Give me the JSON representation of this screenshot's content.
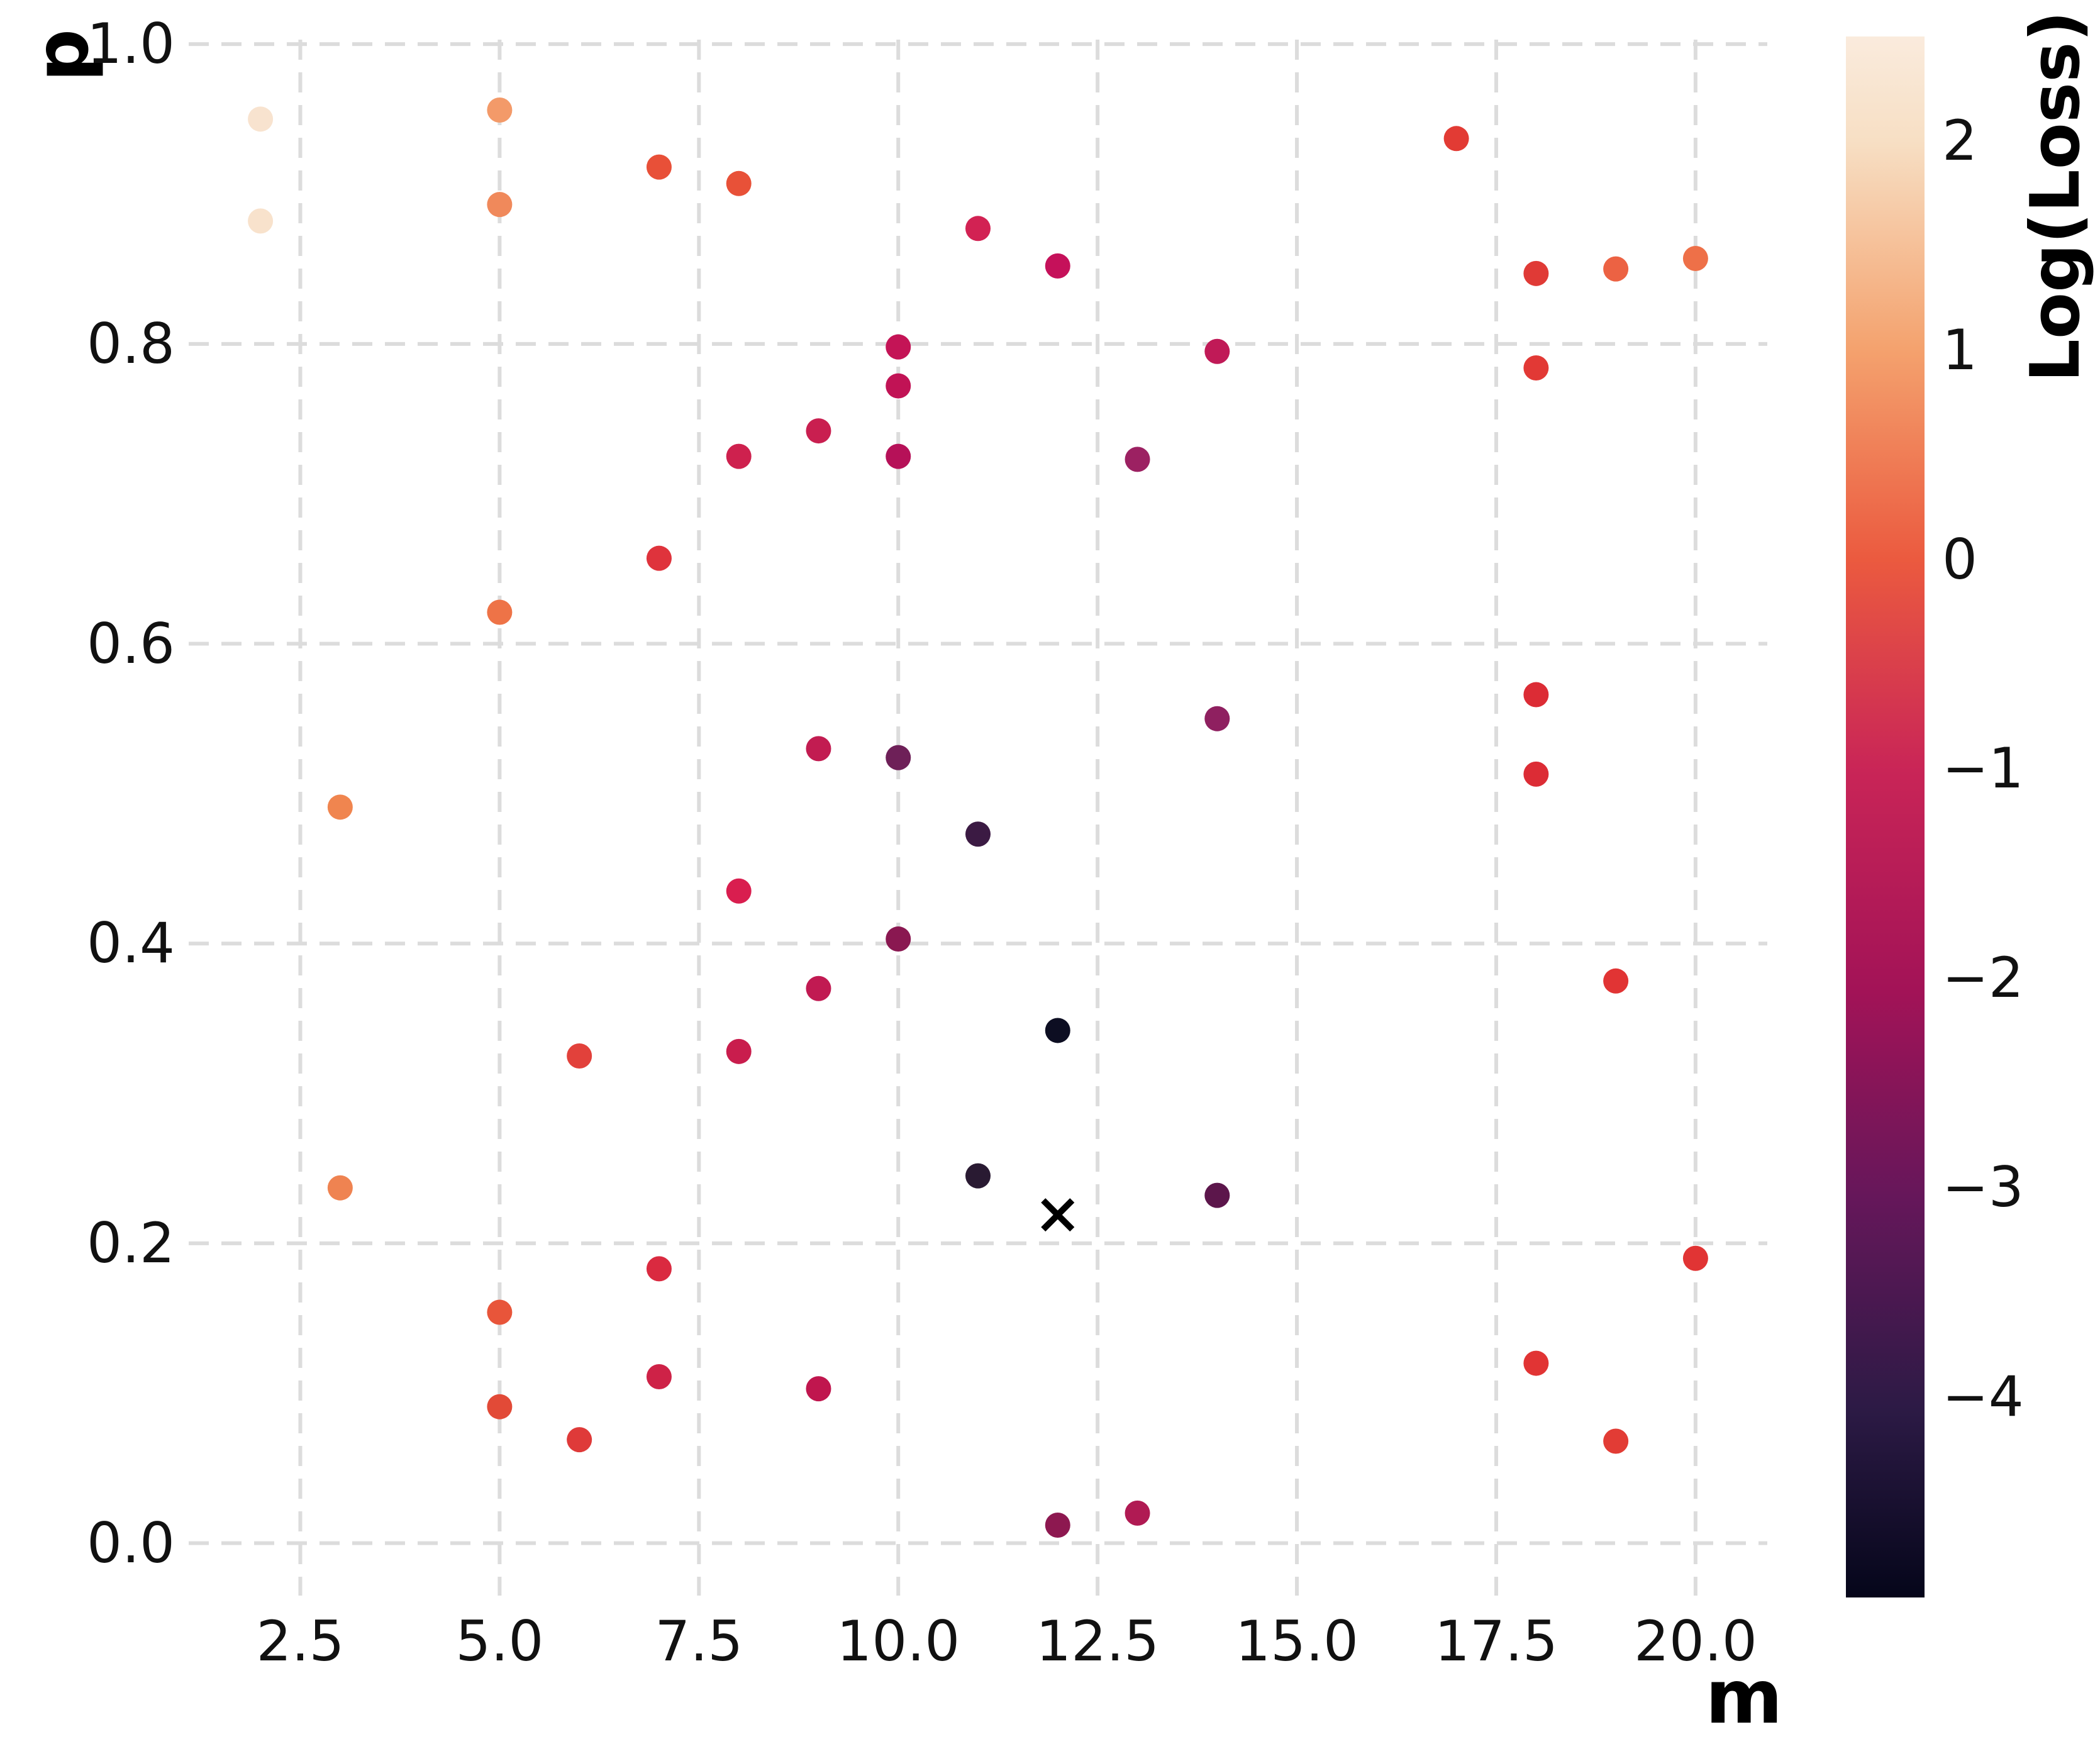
{
  "chart_data": {
    "type": "scatter",
    "title": "",
    "xlabel": "m",
    "ylabel": "p",
    "xlim": [
      1.1,
      20.9
    ],
    "ylim": [
      -0.035,
      1.003
    ],
    "grid": "dashed",
    "grid_color": "#DCDCDC",
    "background_color": "#FFFFFF",
    "marker_radius_px": 20,
    "x_ticks": [
      {
        "v": 2.5,
        "label": "2.5"
      },
      {
        "v": 5.0,
        "label": "5.0"
      },
      {
        "v": 7.5,
        "label": "7.5"
      },
      {
        "v": 10.0,
        "label": "10.0"
      },
      {
        "v": 12.5,
        "label": "12.5"
      },
      {
        "v": 15.0,
        "label": "15.0"
      },
      {
        "v": 17.5,
        "label": "17.5"
      },
      {
        "v": 20.0,
        "label": "20.0"
      }
    ],
    "y_ticks": [
      {
        "v": 0.0,
        "label": "0.0"
      },
      {
        "v": 0.2,
        "label": "0.2"
      },
      {
        "v": 0.4,
        "label": "0.4"
      },
      {
        "v": 0.6,
        "label": "0.6"
      },
      {
        "v": 0.8,
        "label": "0.8"
      },
      {
        "v": 1.0,
        "label": "1.0"
      }
    ],
    "colorbar": {
      "label": "Log(Loss)",
      "vmax": 2.5,
      "vmin": -4.96,
      "ticks": [
        {
          "v": 2,
          "label": "2"
        },
        {
          "v": 1,
          "label": "1"
        },
        {
          "v": 0,
          "label": "0"
        },
        {
          "v": -1,
          "label": "−1"
        },
        {
          "v": -2,
          "label": "−2"
        },
        {
          "v": -3,
          "label": "−3"
        },
        {
          "v": -4,
          "label": "−4"
        }
      ],
      "gradient_stops": [
        {
          "pos": 0.0,
          "color": "#FAEBDD"
        },
        {
          "pos": 0.067,
          "color": "#F7DFC4"
        },
        {
          "pos": 0.2,
          "color": "#F4A26E"
        },
        {
          "pos": 0.335,
          "color": "#EB5A3F"
        },
        {
          "pos": 0.47,
          "color": "#C92557"
        },
        {
          "pos": 0.61,
          "color": "#A31357"
        },
        {
          "pos": 0.745,
          "color": "#65175A"
        },
        {
          "pos": 0.88,
          "color": "#2C1A45"
        },
        {
          "pos": 1.0,
          "color": "#05061A"
        }
      ]
    },
    "points": [
      {
        "m": 2,
        "p": 0.95,
        "log_loss_est": 2.3,
        "color": "#F8E3CF"
      },
      {
        "m": 2,
        "p": 0.882,
        "log_loss_est": 2.3,
        "color": "#F8E2CC"
      },
      {
        "m": 5,
        "p": 0.956,
        "log_loss_est": 1.1,
        "color": "#F39A69"
      },
      {
        "m": 5,
        "p": 0.893,
        "log_loss_est": 0.85,
        "color": "#F0895B"
      },
      {
        "m": 7,
        "p": 0.918,
        "log_loss_est": 0.1,
        "color": "#E85038"
      },
      {
        "m": 8,
        "p": 0.907,
        "log_loss_est": 0.1,
        "color": "#E85138"
      },
      {
        "m": 17,
        "p": 0.937,
        "log_loss_est": -0.1,
        "color": "#E23B34"
      },
      {
        "m": 11,
        "p": 0.877,
        "log_loss_est": -0.75,
        "color": "#D22253"
      },
      {
        "m": 12,
        "p": 0.852,
        "log_loss_est": -1.15,
        "color": "#C5115A"
      },
      {
        "m": 18,
        "p": 0.847,
        "log_loss_est": -0.15,
        "color": "#E03A36"
      },
      {
        "m": 19,
        "p": 0.85,
        "log_loss_est": 0.45,
        "color": "#EC6243"
      },
      {
        "m": 20,
        "p": 0.857,
        "log_loss_est": 0.6,
        "color": "#EE7048"
      },
      {
        "m": 10,
        "p": 0.798,
        "log_loss_est": -1.1,
        "color": "#C41456"
      },
      {
        "m": 10,
        "p": 0.772,
        "log_loss_est": -1.15,
        "color": "#C11355"
      },
      {
        "m": 14,
        "p": 0.795,
        "log_loss_est": -1.2,
        "color": "#C01A57"
      },
      {
        "m": 18,
        "p": 0.784,
        "log_loss_est": -0.15,
        "color": "#E23935"
      },
      {
        "m": 9,
        "p": 0.742,
        "log_loss_est": -0.95,
        "color": "#C91F50"
      },
      {
        "m": 8,
        "p": 0.725,
        "log_loss_est": -0.85,
        "color": "#CE214E"
      },
      {
        "m": 10,
        "p": 0.725,
        "log_loss_est": -1.5,
        "color": "#B61158"
      },
      {
        "m": 13,
        "p": 0.723,
        "log_loss_est": -2.1,
        "color": "#9C2162"
      },
      {
        "m": 7,
        "p": 0.657,
        "log_loss_est": -0.35,
        "color": "#DF333C"
      },
      {
        "m": 5,
        "p": 0.621,
        "log_loss_est": 0.55,
        "color": "#EE7347"
      },
      {
        "m": 3,
        "p": 0.491,
        "log_loss_est": 0.8,
        "color": "#F0854F"
      },
      {
        "m": 9,
        "p": 0.53,
        "log_loss_est": -1.1,
        "color": "#C21C51"
      },
      {
        "m": 10,
        "p": 0.524,
        "log_loss_est": -2.85,
        "color": "#6E2058"
      },
      {
        "m": 14,
        "p": 0.55,
        "log_loss_est": -2.35,
        "color": "#8F2060"
      },
      {
        "m": 18,
        "p": 0.566,
        "log_loss_est": -0.25,
        "color": "#DC2C35"
      },
      {
        "m": 18,
        "p": 0.513,
        "log_loss_est": -0.25,
        "color": "#DC2C35"
      },
      {
        "m": 11,
        "p": 0.473,
        "log_loss_est": -3.7,
        "color": "#3B1A43"
      },
      {
        "m": 8,
        "p": 0.435,
        "log_loss_est": -0.6,
        "color": "#D91E4F"
      },
      {
        "m": 10,
        "p": 0.403,
        "log_loss_est": -2.4,
        "color": "#8A1851"
      },
      {
        "m": 9,
        "p": 0.37,
        "log_loss_est": -1.15,
        "color": "#C11A52"
      },
      {
        "m": 12,
        "p": 0.342,
        "log_loss_est": -4.7,
        "color": "#0D0E22"
      },
      {
        "m": 6,
        "p": 0.325,
        "log_loss_est": -0.2,
        "color": "#E2413B"
      },
      {
        "m": 8,
        "p": 0.328,
        "log_loss_est": -0.95,
        "color": "#C91D4D"
      },
      {
        "m": 19,
        "p": 0.375,
        "log_loss_est": -0.2,
        "color": "#E13434"
      },
      {
        "m": 3,
        "p": 0.237,
        "log_loss_est": 0.75,
        "color": "#EF8351"
      },
      {
        "m": 11,
        "p": 0.245,
        "log_loss_est": -4.1,
        "color": "#291A32"
      },
      {
        "m": 14,
        "p": 0.232,
        "log_loss_est": -3.0,
        "color": "#5C164B"
      },
      {
        "m": 7,
        "p": 0.183,
        "log_loss_est": -0.5,
        "color": "#DA2A40"
      },
      {
        "m": 5,
        "p": 0.154,
        "log_loss_est": 0.05,
        "color": "#E8553A"
      },
      {
        "m": 7,
        "p": 0.111,
        "log_loss_est": -0.8,
        "color": "#CE2247"
      },
      {
        "m": 9,
        "p": 0.103,
        "log_loss_est": -1.2,
        "color": "#C0164E"
      },
      {
        "m": 5,
        "p": 0.091,
        "log_loss_est": -0.05,
        "color": "#E24A37"
      },
      {
        "m": 6,
        "p": 0.069,
        "log_loss_est": -0.2,
        "color": "#DF3A39"
      },
      {
        "m": 20,
        "p": 0.19,
        "log_loss_est": -0.2,
        "color": "#E13434"
      },
      {
        "m": 18,
        "p": 0.12,
        "log_loss_est": -0.2,
        "color": "#E13434"
      },
      {
        "m": 19,
        "p": 0.068,
        "log_loss_est": -0.15,
        "color": "#E23C35"
      },
      {
        "m": 12,
        "p": 0.012,
        "log_loss_est": -2.35,
        "color": "#8D1850"
      },
      {
        "m": 13,
        "p": 0.02,
        "log_loss_est": -1.6,
        "color": "#B01A53"
      }
    ],
    "special_marker": {
      "type": "x",
      "m": 12,
      "p": 0.219,
      "color": "#000000",
      "half_size_px": 23,
      "stroke_px": 10
    }
  }
}
